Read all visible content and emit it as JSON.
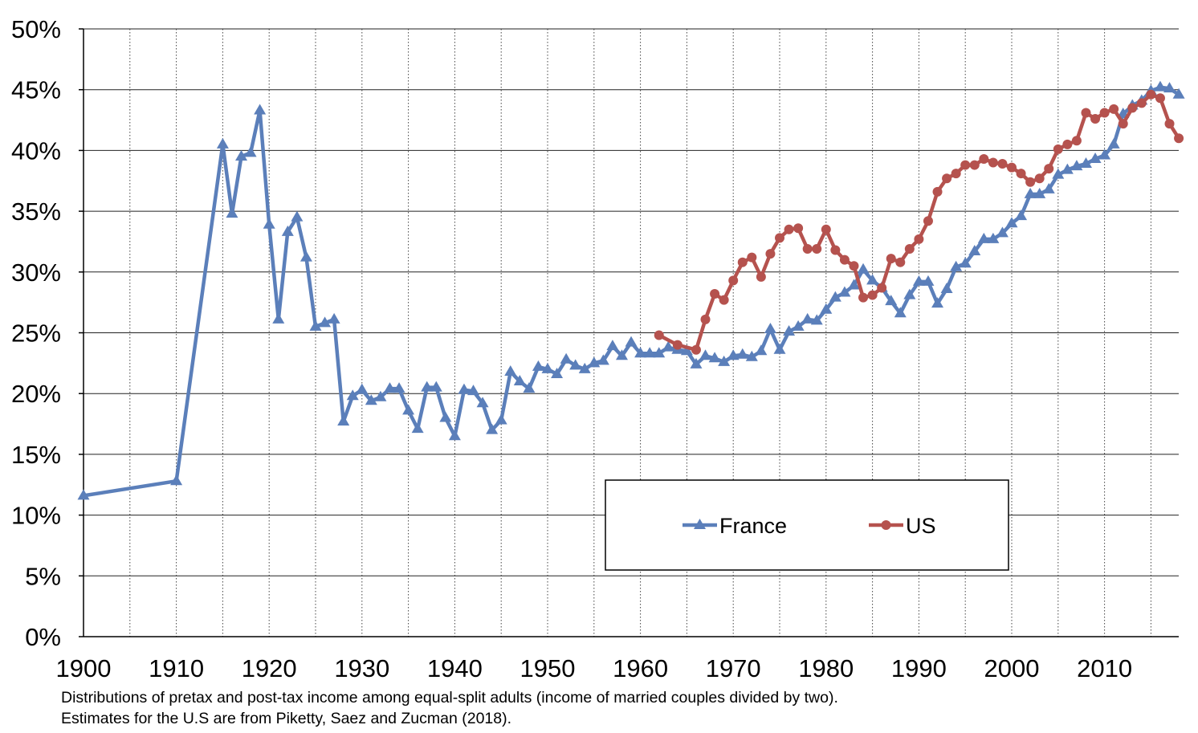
{
  "notes": {
    "line1": "Distributions of pretax and post-tax income among equal-split adults (income of married couples divided by two).",
    "line2": "Estimates for the U.S are from Piketty, Saez and Zucman (2018)."
  },
  "chart_data": {
    "type": "line",
    "title": "",
    "xlabel": "",
    "ylabel": "",
    "xlim": [
      1900,
      2018
    ],
    "ylim": [
      0,
      50
    ],
    "x_ticks": [
      1900,
      1910,
      1920,
      1930,
      1940,
      1950,
      1960,
      1970,
      1980,
      1990,
      2000,
      2010
    ],
    "x_tick_labels": [
      "1900",
      "1910",
      "1920",
      "1930",
      "1940",
      "1950",
      "1960",
      "1970",
      "1980",
      "1990",
      "2000",
      "2010"
    ],
    "y_ticks": [
      0,
      5,
      10,
      15,
      20,
      25,
      30,
      35,
      40,
      45,
      50
    ],
    "y_tick_labels": [
      "0%",
      "5%",
      "10%",
      "15%",
      "20%",
      "25%",
      "30%",
      "35%",
      "40%",
      "45%",
      "50%"
    ],
    "grid": true,
    "legend": "center-right, inside plot",
    "series": [
      {
        "name": "France",
        "color": "#5b7fba",
        "marker": "triangle",
        "x": [
          1900,
          1910,
          1915,
          1916,
          1917,
          1918,
          1919,
          1920,
          1921,
          1922,
          1923,
          1924,
          1925,
          1926,
          1927,
          1928,
          1929,
          1930,
          1931,
          1932,
          1933,
          1934,
          1935,
          1936,
          1937,
          1938,
          1939,
          1940,
          1941,
          1942,
          1943,
          1944,
          1945,
          1946,
          1947,
          1948,
          1949,
          1950,
          1951,
          1952,
          1953,
          1954,
          1955,
          1956,
          1957,
          1958,
          1959,
          1960,
          1961,
          1962,
          1963,
          1964,
          1965,
          1966,
          1967,
          1968,
          1969,
          1970,
          1971,
          1972,
          1973,
          1974,
          1975,
          1976,
          1977,
          1978,
          1979,
          1980,
          1981,
          1982,
          1983,
          1984,
          1985,
          1986,
          1987,
          1988,
          1989,
          1990,
          1991,
          1992,
          1993,
          1994,
          1995,
          1996,
          1997,
          1998,
          1999,
          2000,
          2001,
          2002,
          2003,
          2004,
          2005,
          2006,
          2007,
          2008,
          2009,
          2010,
          2011,
          2012,
          2013,
          2014,
          2015,
          2016,
          2017,
          2018
        ],
        "values": [
          11.6,
          12.8,
          40.5,
          34.8,
          39.5,
          39.8,
          43.3,
          33.9,
          26.1,
          33.3,
          34.5,
          31.2,
          25.5,
          25.8,
          26.1,
          17.7,
          19.8,
          20.3,
          19.4,
          19.7,
          20.4,
          20.4,
          18.6,
          17.1,
          20.5,
          20.5,
          18.0,
          16.5,
          20.3,
          20.2,
          19.2,
          17.0,
          17.8,
          21.8,
          21.0,
          20.4,
          22.2,
          22.0,
          21.6,
          22.8,
          22.3,
          22.0,
          22.5,
          22.7,
          23.9,
          23.1,
          24.2,
          23.3,
          23.3,
          23.3,
          23.8,
          23.6,
          23.5,
          22.4,
          23.1,
          22.9,
          22.6,
          23.1,
          23.2,
          23.0,
          23.5,
          25.3,
          23.6,
          25.1,
          25.5,
          26.1,
          26.0,
          26.9,
          27.9,
          28.3,
          28.9,
          30.2,
          29.3,
          28.7,
          27.6,
          26.6,
          28.1,
          29.2,
          29.2,
          27.4,
          28.6,
          30.4,
          30.7,
          31.7,
          32.7,
          32.7,
          33.2,
          34.0,
          34.6,
          36.4,
          36.4,
          36.8,
          38.0,
          38.4,
          38.7,
          38.9,
          39.3,
          39.6,
          40.5,
          43.0,
          43.7,
          44.1,
          44.9,
          45.2,
          45.1,
          44.6
        ]
      },
      {
        "name": "US",
        "color": "#b5524e",
        "marker": "circle",
        "x": [
          1962,
          1964,
          1966,
          1967,
          1968,
          1969,
          1970,
          1971,
          1972,
          1973,
          1974,
          1975,
          1976,
          1977,
          1978,
          1979,
          1980,
          1981,
          1982,
          1983,
          1984,
          1985,
          1986,
          1987,
          1988,
          1989,
          1990,
          1991,
          1992,
          1993,
          1994,
          1995,
          1996,
          1997,
          1998,
          1999,
          2000,
          2001,
          2002,
          2003,
          2004,
          2005,
          2006,
          2007,
          2008,
          2009,
          2010,
          2011,
          2012,
          2013,
          2014,
          2015,
          2016,
          2017,
          2018
        ],
        "values": [
          24.8,
          24.0,
          23.6,
          26.1,
          28.2,
          27.7,
          29.3,
          30.8,
          31.2,
          29.6,
          31.5,
          32.8,
          33.5,
          33.6,
          31.9,
          31.9,
          33.5,
          31.8,
          31.0,
          30.5,
          27.9,
          28.1,
          28.7,
          31.1,
          30.8,
          31.9,
          32.7,
          34.2,
          36.6,
          37.7,
          38.1,
          38.8,
          38.8,
          39.3,
          39.0,
          38.9,
          38.6,
          38.1,
          37.4,
          37.7,
          38.5,
          40.1,
          40.5,
          40.8,
          43.1,
          42.6,
          43.1,
          43.4,
          42.2,
          43.5,
          43.9,
          44.6,
          44.3,
          42.2,
          41.0
        ]
      }
    ]
  }
}
